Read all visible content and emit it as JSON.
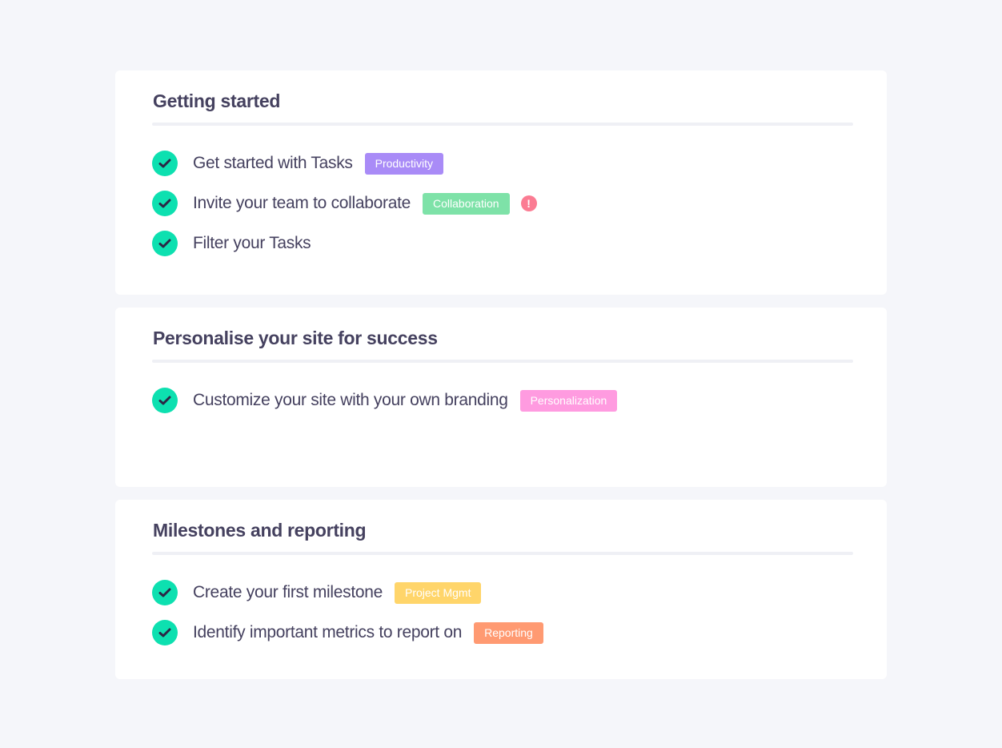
{
  "sections": [
    {
      "title": "Getting started",
      "items": [
        {
          "label": "Get started with Tasks",
          "tag": "Productivity",
          "tag_color": "#a98bf7"
        },
        {
          "label": "Invite your team to collaborate",
          "tag": "Collaboration",
          "tag_color": "#7ee2a8",
          "alert": "!"
        },
        {
          "label": "Filter your Tasks"
        }
      ]
    },
    {
      "title": "Personalise your site for success",
      "items": [
        {
          "label": "Customize your site with your own branding",
          "tag": "Personalization",
          "tag_color": "#ff9be0"
        }
      ]
    },
    {
      "title": "Milestones and reporting",
      "items": [
        {
          "label": "Create your first milestone",
          "tag": "Project Mgmt",
          "tag_color": "#ffd56a"
        },
        {
          "label": "Identify important metrics to report on",
          "tag": "Reporting",
          "tag_color": "#ff9a72"
        }
      ]
    }
  ],
  "colors": {
    "check": "#0de0b0",
    "alert": "#fb7c93",
    "text": "#45415f"
  }
}
